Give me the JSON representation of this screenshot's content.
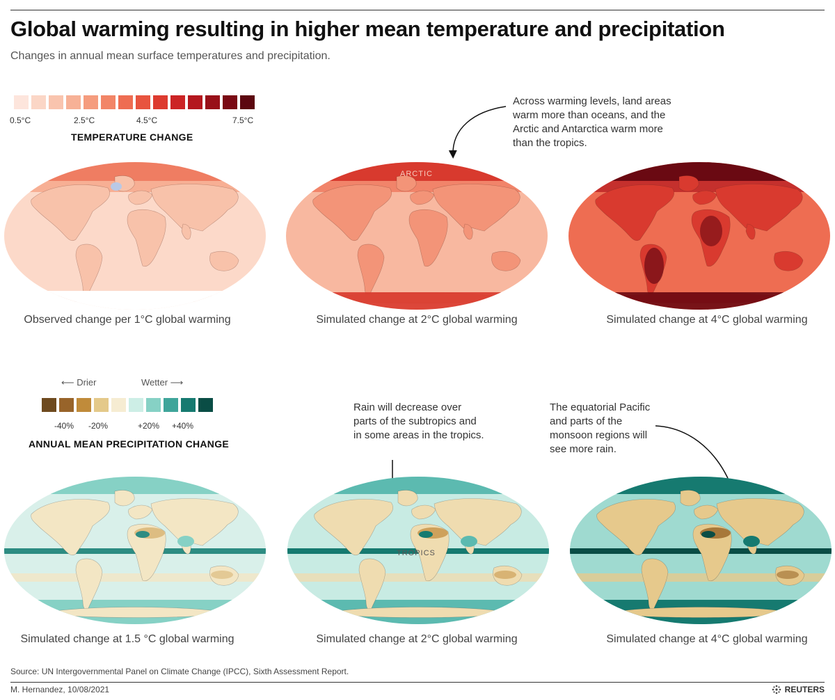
{
  "header": {
    "title": "Global warming resulting in higher mean temperature and precipitation",
    "subtitle": "Changes in annual mean surface temperatures and precipitation."
  },
  "temperature_scale": {
    "title": "TEMPERATURE CHANGE",
    "colors": [
      "#fde5dc",
      "#fbd6c6",
      "#f9c4ae",
      "#f7b196",
      "#f59c7e",
      "#f28567",
      "#ee6d52",
      "#e8543f",
      "#dd3b30",
      "#cc2425",
      "#b4171e",
      "#981019",
      "#7a0a14",
      "#5c0710"
    ],
    "labels": [
      "0.5°C",
      "2.5°C",
      "4.5°C",
      "7.5°C"
    ]
  },
  "precipitation_scale": {
    "title": "ANNUAL MEAN PRECIPITATION CHANGE",
    "drier": "Drier",
    "wetter": "Wetter",
    "colors": [
      "#6e4a1f",
      "#98642a",
      "#c08b3a",
      "#e4c98a",
      "#f6ecd2",
      "#cdeee6",
      "#86d1c5",
      "#3fa59a",
      "#167a70",
      "#0a4d45"
    ],
    "labels": [
      "-40%",
      "-20%",
      "+20%",
      "+40%"
    ]
  },
  "annotations": {
    "warming_levels": "Across warming levels, land areas warm more than oceans, and the Arctic and Antarctica warm more than the tropics.",
    "rain_decrease": "Rain will decrease over parts of the subtropics and in some areas in the tropics.",
    "equatorial_pacific": "The equatorial Pacific and parts of the monsoon regions will see more rain."
  },
  "map_labels": {
    "arctic": "ARCTIC",
    "tropics": "TROPICS"
  },
  "temperature_maps": [
    {
      "caption": "Observed change per 1°C global warming",
      "ocean": "#fcd9c9",
      "land": "#f8c2aa",
      "pole": "#ef7d62",
      "accent": "#f59c7e",
      "icon": "observed-temperature-map"
    },
    {
      "caption": "Simulated change at 2°C global warming",
      "ocean": "#f8b8a0",
      "land": "#f39478",
      "pole": "#d83a2e",
      "accent": "#ee6d52",
      "icon": "temperature-2c-map"
    },
    {
      "caption": "Simulated change at 4°C global warming",
      "ocean": "#ee6d52",
      "land": "#d93a2f",
      "pole": "#6a0912",
      "accent": "#b4171e",
      "icon": "temperature-4c-map"
    }
  ],
  "precipitation_maps": [
    {
      "caption": "Simulated change at 1.5 °C global warming",
      "ocean": "#d9f0ea",
      "land": "#f3e6c4",
      "band": "#2d8c82",
      "dry": "#d8b577",
      "wet": "#86d1c5",
      "icon": "precipitation-1-5c-map"
    },
    {
      "caption": "Simulated change at 2°C global warming",
      "ocean": "#c8ebe3",
      "land": "#efdcb0",
      "band": "#167a70",
      "dry": "#c8974c",
      "wet": "#5cbab0",
      "icon": "precipitation-2c-map"
    },
    {
      "caption": "Simulated change at 4°C global warming",
      "ocean": "#9fdad0",
      "land": "#e6c98c",
      "band": "#0a4d45",
      "dry": "#9b6a2c",
      "wet": "#167a70",
      "icon": "precipitation-4c-map"
    }
  ],
  "footer": {
    "source": "Source: UN Intergovernmental Panel on Climate Change (IPCC), Sixth Assessment Report.",
    "credit": "M. Hernandez, 10/08/2021",
    "publisher": "REUTERS"
  }
}
